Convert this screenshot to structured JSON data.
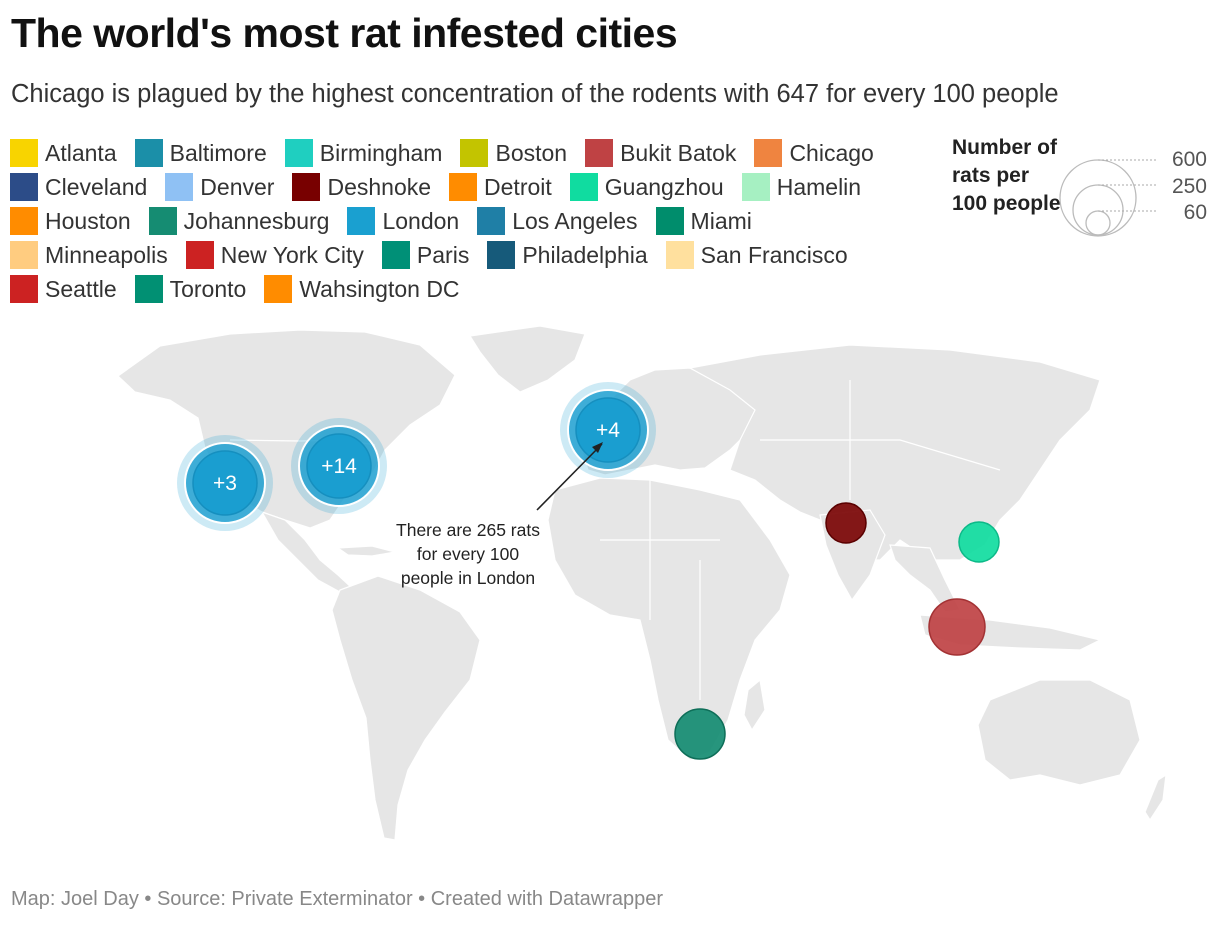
{
  "title": "The world's most rat infested cities",
  "subtitle": "Chicago is plagued by the highest concentration of the rodents with 647 for every 100 people",
  "legend": {
    "rows": [
      [
        {
          "label": "Atlanta",
          "color": "#f8d400"
        },
        {
          "label": "Baltimore",
          "color": "#1b8fa8"
        },
        {
          "label": "Birmingham",
          "color": "#1fcfc0"
        },
        {
          "label": "Boston",
          "color": "#c3c400"
        },
        {
          "label": "Bukit Batok",
          "color": "#bf4244"
        },
        {
          "label": "Chicago",
          "color": "#ef8440"
        }
      ],
      [
        {
          "label": "Cleveland",
          "color": "#2c4c88"
        },
        {
          "label": "Denver",
          "color": "#8fc1f4"
        },
        {
          "label": "Deshnoke",
          "color": "#780000"
        },
        {
          "label": "Detroit",
          "color": "#ff8c00"
        },
        {
          "label": "Guangzhou",
          "color": "#10dca0"
        },
        {
          "label": "Hamelin",
          "color": "#a6f0c2"
        }
      ],
      [
        {
          "label": "Houston",
          "color": "#ff8c00"
        },
        {
          "label": "Johannesburg",
          "color": "#158c72"
        },
        {
          "label": "London",
          "color": "#1aa0d0"
        },
        {
          "label": "Los Angeles",
          "color": "#1f7fa6"
        },
        {
          "label": "Miami",
          "color": "#008d6c"
        }
      ],
      [
        {
          "label": "Minneapolis",
          "color": "#ffcc80"
        },
        {
          "label": "New York City",
          "color": "#cc2222"
        },
        {
          "label": "Paris",
          "color": "#009077"
        },
        {
          "label": "Philadelphia",
          "color": "#165a7a"
        },
        {
          "label": "San Francisco",
          "color": "#ffe09e"
        }
      ],
      [
        {
          "label": "Seattle",
          "color": "#cc2222"
        },
        {
          "label": "Toronto",
          "color": "#019073"
        },
        {
          "label": "Wahsington DC",
          "color": "#ff8c00"
        }
      ]
    ]
  },
  "size_legend": {
    "title": "Number of rats per 100 people",
    "values": [
      "600",
      "250",
      "60"
    ]
  },
  "clusters": [
    {
      "label": "+3",
      "color": "#1a9ed0"
    },
    {
      "label": "+14",
      "color": "#1a9ed0"
    },
    {
      "label": "+4",
      "color": "#1a9ed0"
    }
  ],
  "markers": [
    {
      "city": "Deshnoke",
      "color": "#780000"
    },
    {
      "city": "Guangzhou",
      "color": "#10dca0"
    },
    {
      "city": "Bukit Batok",
      "color": "#bf4244"
    },
    {
      "city": "Johannesburg",
      "color": "#158c72"
    }
  ],
  "annotation": {
    "lines": [
      "There are 265 rats",
      "for every 100",
      "people in London"
    ]
  },
  "footer": "Map: Joel Day • Source: Private Exterminator • Created with Datawrapper"
}
